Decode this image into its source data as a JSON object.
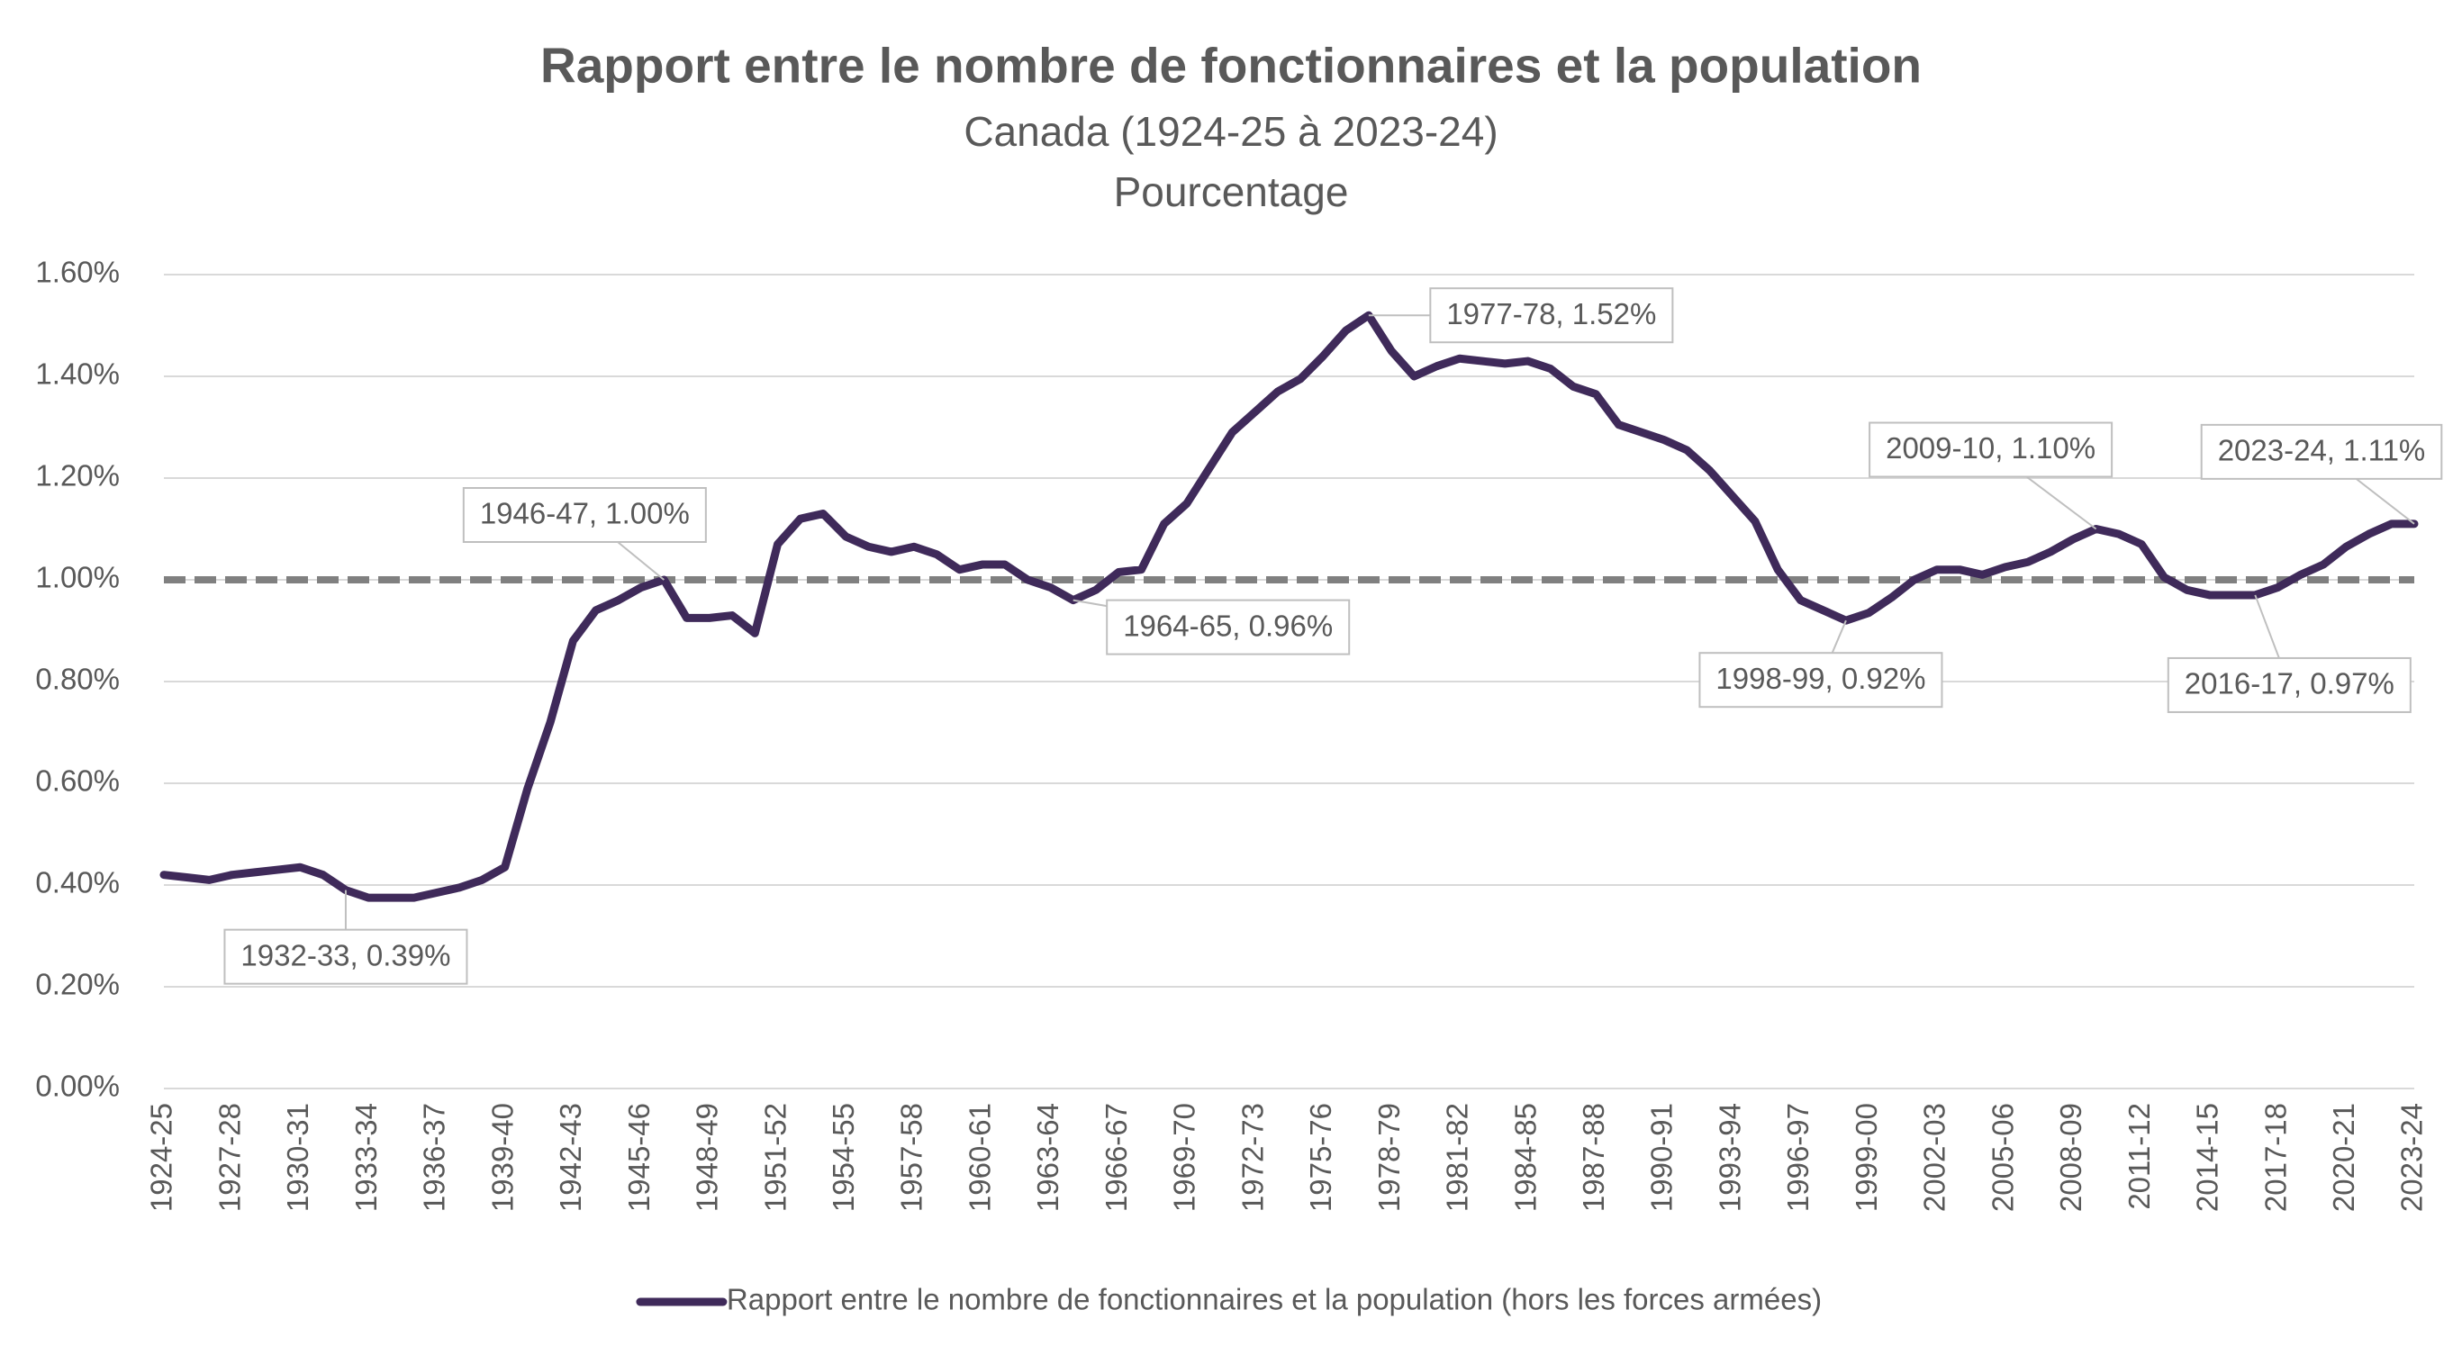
{
  "chart_data": {
    "type": "line",
    "title": "Rapport entre le nombre de fonctionnaires et la population",
    "subtitle": "Canada (1924-25 à 2023-24)",
    "subtitle2": "Pourcentage",
    "categories": [
      "1924-25",
      null,
      null,
      "1927-28",
      null,
      null,
      "1930-31",
      null,
      null,
      "1933-34",
      null,
      null,
      "1936-37",
      null,
      null,
      "1939-40",
      null,
      null,
      "1942-43",
      null,
      null,
      "1945-46",
      null,
      null,
      "1948-49",
      null,
      null,
      "1951-52",
      null,
      null,
      "1954-55",
      null,
      null,
      "1957-58",
      null,
      null,
      "1960-61",
      null,
      null,
      "1963-64",
      null,
      null,
      "1966-67",
      null,
      null,
      "1969-70",
      null,
      null,
      "1972-73",
      null,
      null,
      "1975-76",
      null,
      null,
      "1978-79",
      null,
      null,
      "1981-82",
      null,
      null,
      "1984-85",
      null,
      null,
      "1987-88",
      null,
      null,
      "1990-91",
      null,
      null,
      "1993-94",
      null,
      null,
      "1996-97",
      null,
      null,
      "1999-00",
      null,
      null,
      "2002-03",
      null,
      null,
      "2005-06",
      null,
      null,
      "2008-09",
      null,
      null,
      "2011-12",
      null,
      null,
      "2014-15",
      null,
      null,
      "2017-18",
      null,
      null,
      "2020-21",
      null,
      null,
      "2023-24"
    ],
    "series": [
      {
        "name": "Rapport entre le nombre de fonctionnaires et la population (hors les forces armées)",
        "color": "#3f2a5a",
        "values": [
          0.42,
          0.415,
          0.41,
          0.42,
          0.425,
          0.43,
          0.435,
          0.42,
          0.39,
          0.375,
          0.375,
          0.375,
          0.385,
          0.395,
          0.41,
          0.435,
          0.59,
          0.72,
          0.88,
          0.94,
          0.96,
          0.985,
          1.0,
          0.925,
          0.925,
          0.93,
          0.895,
          1.07,
          1.12,
          1.13,
          1.085,
          1.065,
          1.055,
          1.065,
          1.05,
          1.02,
          1.03,
          1.03,
          1.0,
          0.985,
          0.96,
          0.98,
          1.015,
          1.02,
          1.11,
          1.15,
          1.22,
          1.29,
          1.33,
          1.37,
          1.395,
          1.44,
          1.49,
          1.52,
          1.45,
          1.4,
          1.42,
          1.435,
          1.43,
          1.425,
          1.43,
          1.415,
          1.38,
          1.365,
          1.305,
          1.29,
          1.275,
          1.255,
          1.215,
          1.165,
          1.115,
          1.02,
          0.96,
          0.94,
          0.92,
          0.935,
          0.965,
          1.0,
          1.02,
          1.02,
          1.01,
          1.025,
          1.035,
          1.055,
          1.08,
          1.1,
          1.09,
          1.07,
          1.005,
          0.98,
          0.97,
          0.97,
          0.97,
          0.985,
          1.01,
          1.03,
          1.065,
          1.09,
          1.11,
          1.11
        ],
        "value_labels": [
          null,
          null,
          null,
          null,
          null,
          null,
          null,
          null,
          "1932-33, 0.39%",
          null,
          null,
          null,
          null,
          null,
          null,
          null,
          null,
          null,
          null,
          null,
          null,
          null,
          "1946-47, 1.00%",
          null,
          null,
          null,
          null,
          null,
          null,
          null,
          null,
          null,
          null,
          null,
          null,
          null,
          null,
          null,
          null,
          null,
          "1964-65, 0.96%",
          null,
          null,
          null,
          null,
          null,
          null,
          null,
          null,
          null,
          null,
          null,
          null,
          "1977-78, 1.52%",
          null,
          null,
          null,
          null,
          null,
          null,
          null,
          null,
          null,
          null,
          null,
          null,
          null,
          null,
          null,
          null,
          null,
          null,
          null,
          null,
          "1998-99, 0.92%",
          null,
          null,
          null,
          null,
          null,
          null,
          null,
          null,
          null,
          null,
          "2009-10, 1.10%",
          null,
          null,
          null,
          null,
          null,
          null,
          "2016-17, 0.97%",
          null,
          null,
          null,
          null,
          null,
          null,
          "2023-24, 1.11%"
        ]
      }
    ],
    "reference_line": {
      "value": 1,
      "color": "#808080"
    },
    "ylim": [
      0,
      1.6
    ],
    "yticks": [
      {
        "value": 0,
        "label": "0.00%"
      },
      {
        "value": 0.2,
        "label": "0.20%"
      },
      {
        "value": 0.4,
        "label": "0.40%"
      },
      {
        "value": 0.6,
        "label": "0.60%"
      },
      {
        "value": 0.8,
        "label": "0.80%"
      },
      {
        "value": 1,
        "label": "1.00%"
      },
      {
        "value": 1.2,
        "label": "1.20%"
      },
      {
        "value": 1.4,
        "label": "1.40%"
      },
      {
        "value": 1.6,
        "label": "1.60%"
      }
    ],
    "grid": true,
    "legend": "bottom"
  }
}
